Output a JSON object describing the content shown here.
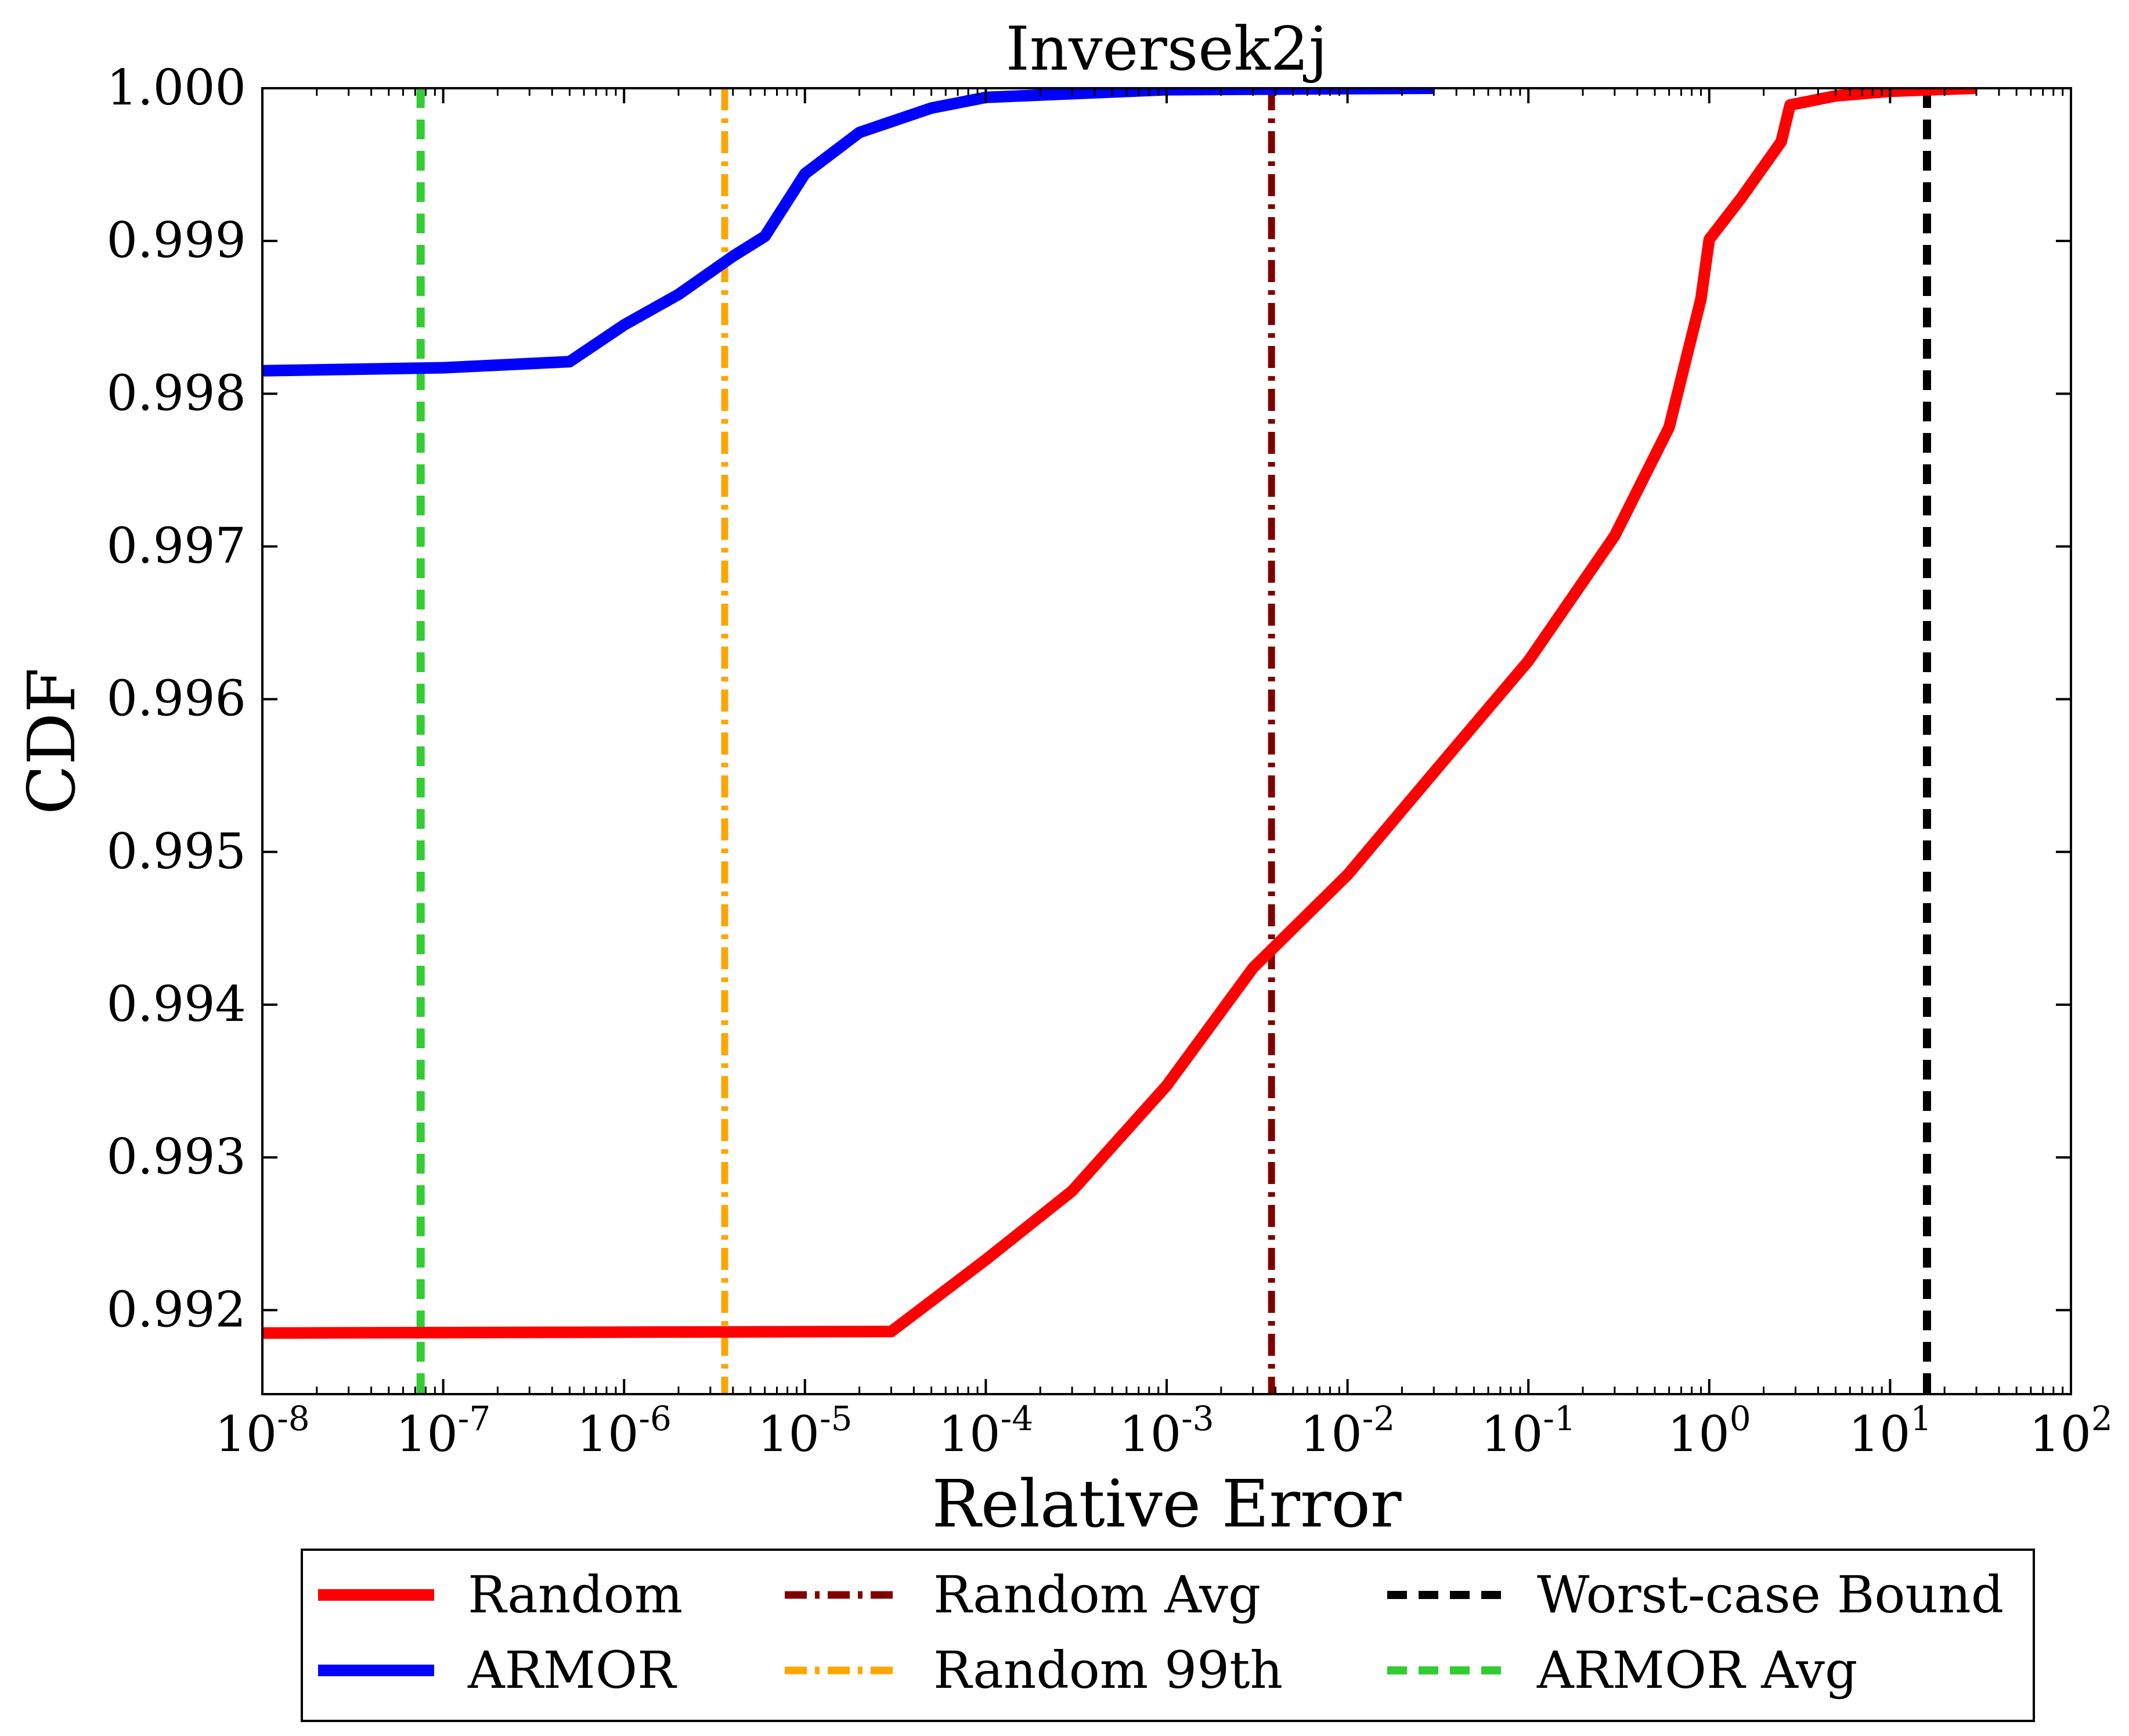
{
  "chart_data": {
    "type": "line",
    "title": "Inversek2j",
    "xlabel": "Relative Error",
    "ylabel": "CDF",
    "xscale": "log",
    "xlim": [
      1e-08,
      100
    ],
    "ylim": [
      0.99145,
      1.0
    ],
    "grid": false,
    "legend_placement": "bottom-outside",
    "x_ticks": [
      {
        "base": "10",
        "exp": "-8",
        "value": 1e-08
      },
      {
        "base": "10",
        "exp": "-7",
        "value": 1e-07
      },
      {
        "base": "10",
        "exp": "-6",
        "value": 1e-06
      },
      {
        "base": "10",
        "exp": "-5",
        "value": 1e-05
      },
      {
        "base": "10",
        "exp": "-4",
        "value": 0.0001
      },
      {
        "base": "10",
        "exp": "-3",
        "value": 0.001
      },
      {
        "base": "10",
        "exp": "-2",
        "value": 0.01
      },
      {
        "base": "10",
        "exp": "-1",
        "value": 0.1
      },
      {
        "base": "10",
        "exp": "0",
        "value": 1
      },
      {
        "base": "10",
        "exp": "1",
        "value": 10
      },
      {
        "base": "10",
        "exp": "2",
        "value": 100
      }
    ],
    "y_ticks": [
      {
        "label": "0.992",
        "value": 0.992
      },
      {
        "label": "0.993",
        "value": 0.993
      },
      {
        "label": "0.994",
        "value": 0.994
      },
      {
        "label": "0.995",
        "value": 0.995
      },
      {
        "label": "0.996",
        "value": 0.996
      },
      {
        "label": "0.997",
        "value": 0.997
      },
      {
        "label": "0.998",
        "value": 0.998
      },
      {
        "label": "0.999",
        "value": 0.999
      },
      {
        "label": "1.000",
        "value": 1.0
      }
    ],
    "series": [
      {
        "name": "Random",
        "color": "#ff0000",
        "style": "solid",
        "points": [
          [
            1e-08,
            0.99185
          ],
          [
            3e-05,
            0.99186
          ],
          [
            0.0001,
            0.99233
          ],
          [
            0.0003,
            0.99278
          ],
          [
            0.001,
            0.99347
          ],
          [
            0.003,
            0.99424
          ],
          [
            0.01,
            0.99485
          ],
          [
            0.03,
            0.99552
          ],
          [
            0.1,
            0.99625
          ],
          [
            0.3,
            0.99707
          ],
          [
            0.6,
            0.99778
          ],
          [
            0.9,
            0.99862
          ],
          [
            1.0,
            0.99901
          ],
          [
            1.5,
            0.99928
          ],
          [
            2.5,
            0.99965
          ],
          [
            2.8,
            0.99989
          ],
          [
            5,
            0.99995
          ],
          [
            10,
            0.99998
          ],
          [
            30,
            1.0
          ]
        ]
      },
      {
        "name": "ARMOR",
        "color": "#0000ff",
        "style": "solid",
        "points": [
          [
            1e-08,
            0.99815
          ],
          [
            1e-07,
            0.99817
          ],
          [
            5e-07,
            0.99821
          ],
          [
            1e-06,
            0.99845
          ],
          [
            2e-06,
            0.99865
          ],
          [
            4e-06,
            0.9989
          ],
          [
            6e-06,
            0.99903
          ],
          [
            1e-05,
            0.99944
          ],
          [
            2e-05,
            0.99971
          ],
          [
            5e-05,
            0.99987
          ],
          [
            0.0001,
            0.99994
          ],
          [
            0.001,
            0.99999
          ],
          [
            0.03,
            1.0
          ]
        ]
      }
    ],
    "reference_lines": [
      {
        "name": "Random Avg",
        "x": 0.0038,
        "color": "#800000",
        "style": "dashdot"
      },
      {
        "name": "Random 99th",
        "x": 3.6e-06,
        "color": "#ffa500",
        "style": "dashdot"
      },
      {
        "name": "Worst-case Bound",
        "x": 16,
        "color": "#000000",
        "style": "dashed"
      },
      {
        "name": "ARMOR Avg",
        "x": 7.5e-08,
        "color": "#32cd32",
        "style": "dashed"
      }
    ]
  }
}
